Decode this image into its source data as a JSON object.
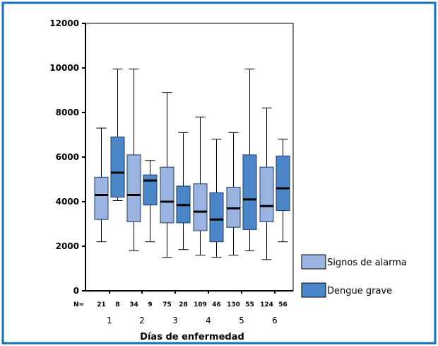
{
  "colors": {
    "frame": "#1272b8",
    "signos": "#9ab3e0",
    "dengue": "#4b87c8",
    "stroke": "#1f3b63",
    "median": "#000000"
  },
  "chart_data": {
    "type": "boxplot",
    "title": "",
    "xlabel": "Días de enfermedad",
    "ylabel": "",
    "ylim": [
      0,
      12000
    ],
    "y_ticks": [
      0,
      2000,
      4000,
      6000,
      8000,
      10000,
      12000
    ],
    "categories": [
      "1",
      "2",
      "3",
      "4",
      "5",
      "6"
    ],
    "n_label": "N=",
    "n_values": [
      [
        "21",
        "8"
      ],
      [
        "34",
        "9"
      ],
      [
        "75",
        "28"
      ],
      [
        "109",
        "46"
      ],
      [
        "130",
        "55"
      ],
      [
        "124",
        "56"
      ]
    ],
    "grid": false,
    "legend_position": "right",
    "series": [
      {
        "name": "Signos de alarma",
        "color": "#9ab3e0",
        "boxes": [
          {
            "min": 2200,
            "q1": 3200,
            "median": 4300,
            "q3": 5100,
            "max": 7300
          },
          {
            "min": 1800,
            "q1": 3100,
            "median": 4300,
            "q3": 6100,
            "max": 9950
          },
          {
            "min": 1500,
            "q1": 3050,
            "median": 4000,
            "q3": 5550,
            "max": 8900
          },
          {
            "min": 1600,
            "q1": 2700,
            "median": 3550,
            "q3": 4800,
            "max": 7800
          },
          {
            "min": 1600,
            "q1": 2850,
            "median": 3700,
            "q3": 4650,
            "max": 7100
          },
          {
            "min": 1400,
            "q1": 3100,
            "median": 3800,
            "q3": 5550,
            "max": 8200
          }
        ]
      },
      {
        "name": "Dengue grave",
        "color": "#4b87c8",
        "boxes": [
          {
            "min": 4050,
            "q1": 4200,
            "median": 5300,
            "q3": 6900,
            "max": 9950
          },
          {
            "min": 2200,
            "q1": 3850,
            "median": 4950,
            "q3": 5200,
            "max": 5850
          },
          {
            "min": 1850,
            "q1": 3050,
            "median": 3850,
            "q3": 4700,
            "max": 7100
          },
          {
            "min": 1500,
            "q1": 2200,
            "median": 3200,
            "q3": 4400,
            "max": 6800
          },
          {
            "min": 1800,
            "q1": 2750,
            "median": 4100,
            "q3": 6100,
            "max": 9950
          },
          {
            "min": 2200,
            "q1": 3600,
            "median": 4600,
            "q3": 6050,
            "max": 6800
          }
        ]
      }
    ]
  }
}
